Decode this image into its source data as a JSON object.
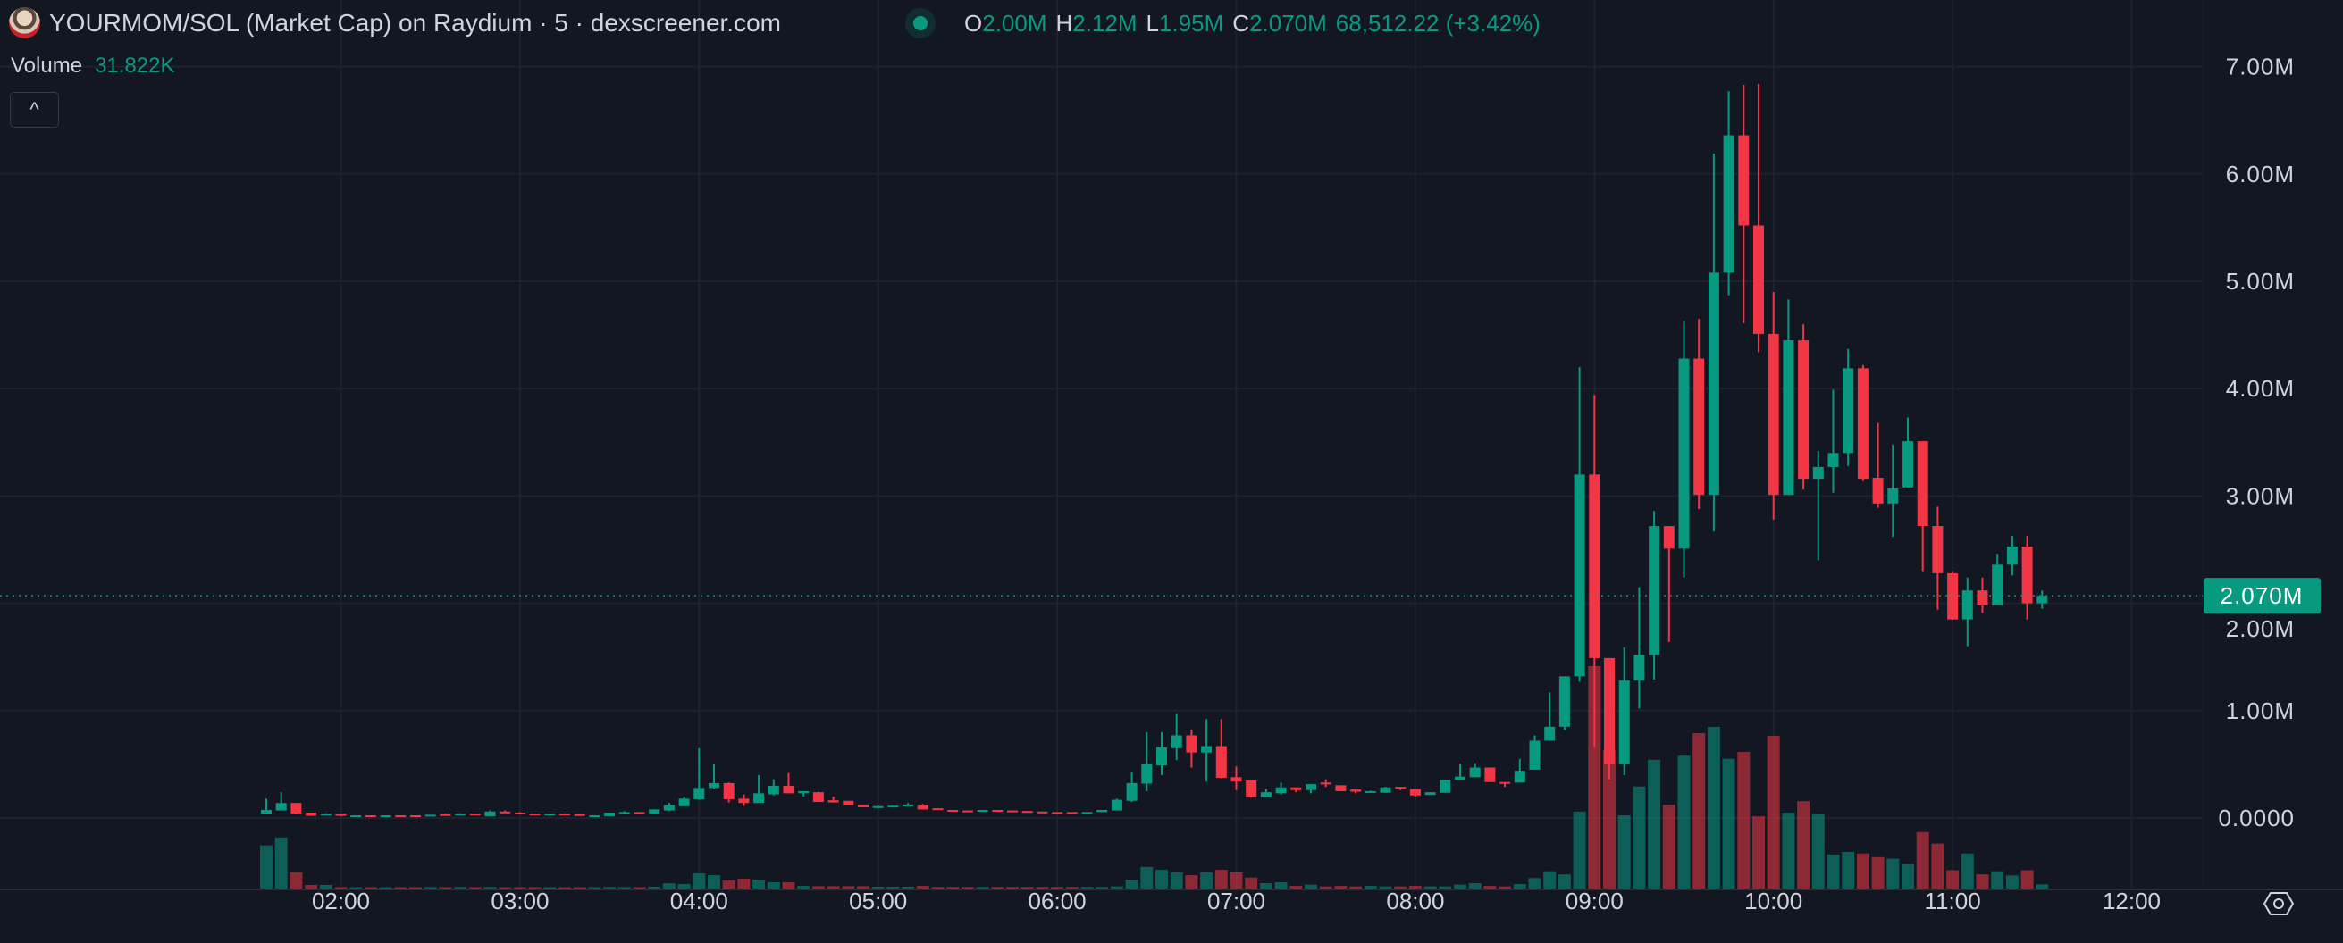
{
  "header": {
    "title": "YOURMOM/SOL (Market Cap) on Raydium · 5 · dexscreener.com",
    "status": "live",
    "open_label": "O",
    "open": "2.00M",
    "high_label": "H",
    "high": "2.12M",
    "low_label": "L",
    "low": "1.95M",
    "close_label": "C",
    "close": "2.070M",
    "change": "68,512.22 (+3.42%)"
  },
  "volume_legend": {
    "label": "Volume",
    "value": "31.822K"
  },
  "collapse_button": {
    "glyph": "^"
  },
  "settings_icon": "gear-icon",
  "colors": {
    "background": "#131722",
    "up": "#089981",
    "down": "#f23645",
    "grid": "#1e222d",
    "text": "#d1d4dc"
  },
  "chart_data": {
    "type": "candlestick",
    "interval": "5",
    "unit_price": "M",
    "unit_volume": "K",
    "y_ticks": [
      "0.0000",
      "1.00M",
      "2.00M",
      "3.00M",
      "4.00M",
      "5.00M",
      "6.00M",
      "7.00M"
    ],
    "y_tick_values": [
      0,
      1,
      2,
      3,
      4,
      5,
      6,
      7
    ],
    "ylim": [
      0,
      7.0
    ],
    "x_ticks": [
      "02:00",
      "03:00",
      "04:00",
      "05:00",
      "06:00",
      "07:00",
      "08:00",
      "09:00",
      "10:00",
      "11:00",
      "12:00"
    ],
    "first_candle_time": "01:35",
    "last_price": 2.07,
    "last_price_label": "2.070M",
    "grid": true,
    "ohlc": [
      [
        0.04,
        0.18,
        0.035,
        0.075
      ],
      [
        0.07,
        0.24,
        0.07,
        0.14
      ],
      [
        0.14,
        0.14,
        0.035,
        0.04
      ],
      [
        0.05,
        0.05,
        0.02,
        0.02
      ],
      [
        0.03,
        0.045,
        0.025,
        0.04
      ],
      [
        0.04,
        0.04,
        0.015,
        0.02
      ],
      [
        0.02,
        0.025,
        0.02,
        0.025
      ],
      [
        0.025,
        0.025,
        0.02,
        0.02
      ],
      [
        0.02,
        0.025,
        0.02,
        0.025
      ],
      [
        0.025,
        0.025,
        0.02,
        0.02
      ],
      [
        0.025,
        0.025,
        0.02,
        0.02
      ],
      [
        0.02,
        0.03,
        0.02,
        0.03
      ],
      [
        0.035,
        0.04,
        0.02,
        0.025
      ],
      [
        0.03,
        0.045,
        0.03,
        0.04
      ],
      [
        0.04,
        0.04,
        0.035,
        0.035
      ],
      [
        0.015,
        0.07,
        0.015,
        0.06
      ],
      [
        0.06,
        0.07,
        0.05,
        0.05
      ],
      [
        0.05,
        0.055,
        0.04,
        0.04
      ],
      [
        0.04,
        0.04,
        0.03,
        0.035
      ],
      [
        0.035,
        0.04,
        0.035,
        0.04
      ],
      [
        0.04,
        0.04,
        0.035,
        0.035
      ],
      [
        0.035,
        0.035,
        0.025,
        0.025
      ],
      [
        0.02,
        0.025,
        0.02,
        0.025
      ],
      [
        0.015,
        0.05,
        0.015,
        0.05
      ],
      [
        0.05,
        0.065,
        0.05,
        0.055
      ],
      [
        0.055,
        0.055,
        0.05,
        0.05
      ],
      [
        0.04,
        0.08,
        0.04,
        0.08
      ],
      [
        0.07,
        0.14,
        0.065,
        0.12
      ],
      [
        0.11,
        0.2,
        0.11,
        0.18
      ],
      [
        0.175,
        0.65,
        0.17,
        0.28
      ],
      [
        0.28,
        0.5,
        0.27,
        0.325
      ],
      [
        0.325,
        0.33,
        0.145,
        0.175
      ],
      [
        0.18,
        0.22,
        0.11,
        0.14
      ],
      [
        0.14,
        0.4,
        0.14,
        0.23
      ],
      [
        0.22,
        0.36,
        0.21,
        0.3
      ],
      [
        0.3,
        0.42,
        0.23,
        0.23
      ],
      [
        0.23,
        0.25,
        0.2,
        0.25
      ],
      [
        0.24,
        0.245,
        0.15,
        0.15
      ],
      [
        0.165,
        0.2,
        0.145,
        0.145
      ],
      [
        0.16,
        0.16,
        0.12,
        0.12
      ],
      [
        0.125,
        0.125,
        0.1,
        0.1
      ],
      [
        0.1,
        0.115,
        0.09,
        0.11
      ],
      [
        0.11,
        0.115,
        0.11,
        0.115
      ],
      [
        0.11,
        0.14,
        0.11,
        0.125
      ],
      [
        0.12,
        0.13,
        0.08,
        0.08
      ],
      [
        0.09,
        0.09,
        0.08,
        0.08
      ],
      [
        0.075,
        0.075,
        0.06,
        0.065
      ],
      [
        0.07,
        0.07,
        0.065,
        0.065
      ],
      [
        0.07,
        0.075,
        0.07,
        0.075
      ],
      [
        0.075,
        0.075,
        0.07,
        0.07
      ],
      [
        0.07,
        0.07,
        0.065,
        0.065
      ],
      [
        0.065,
        0.065,
        0.05,
        0.055
      ],
      [
        0.06,
        0.06,
        0.055,
        0.055
      ],
      [
        0.055,
        0.055,
        0.05,
        0.05
      ],
      [
        0.055,
        0.055,
        0.045,
        0.045
      ],
      [
        0.047,
        0.055,
        0.047,
        0.055
      ],
      [
        0.055,
        0.075,
        0.055,
        0.075
      ],
      [
        0.07,
        0.18,
        0.07,
        0.17
      ],
      [
        0.16,
        0.43,
        0.15,
        0.325
      ],
      [
        0.32,
        0.8,
        0.25,
        0.5
      ],
      [
        0.49,
        0.8,
        0.4,
        0.66
      ],
      [
        0.65,
        0.97,
        0.54,
        0.77
      ],
      [
        0.77,
        0.825,
        0.47,
        0.61
      ],
      [
        0.61,
        0.92,
        0.34,
        0.67
      ],
      [
        0.67,
        0.92,
        0.37,
        0.375
      ],
      [
        0.38,
        0.48,
        0.26,
        0.34
      ],
      [
        0.35,
        0.35,
        0.19,
        0.195
      ],
      [
        0.195,
        0.27,
        0.195,
        0.24
      ],
      [
        0.23,
        0.33,
        0.22,
        0.285
      ],
      [
        0.285,
        0.285,
        0.24,
        0.26
      ],
      [
        0.26,
        0.315,
        0.23,
        0.315
      ],
      [
        0.33,
        0.36,
        0.29,
        0.315
      ],
      [
        0.305,
        0.305,
        0.25,
        0.25
      ],
      [
        0.265,
        0.265,
        0.23,
        0.245
      ],
      [
        0.235,
        0.255,
        0.235,
        0.25
      ],
      [
        0.235,
        0.29,
        0.235,
        0.285
      ],
      [
        0.29,
        0.29,
        0.26,
        0.275
      ],
      [
        0.27,
        0.27,
        0.2,
        0.21
      ],
      [
        0.215,
        0.24,
        0.215,
        0.24
      ],
      [
        0.235,
        0.355,
        0.235,
        0.355
      ],
      [
        0.355,
        0.505,
        0.355,
        0.385
      ],
      [
        0.38,
        0.51,
        0.38,
        0.47
      ],
      [
        0.47,
        0.47,
        0.335,
        0.335
      ],
      [
        0.335,
        0.335,
        0.29,
        0.32
      ],
      [
        0.33,
        0.55,
        0.33,
        0.44
      ],
      [
        0.45,
        0.77,
        0.45,
        0.72
      ],
      [
        0.72,
        1.17,
        0.72,
        0.85
      ],
      [
        0.85,
        1.32,
        0.82,
        1.32
      ],
      [
        1.32,
        4.2,
        1.27,
        3.2
      ],
      [
        3.2,
        3.94,
        0.66,
        1.49
      ],
      [
        1.49,
        1.49,
        0.36,
        0.5
      ],
      [
        0.5,
        1.59,
        0.4,
        1.28
      ],
      [
        1.28,
        2.15,
        1.02,
        1.52
      ],
      [
        1.52,
        2.86,
        1.29,
        2.72
      ],
      [
        2.72,
        2.72,
        1.64,
        2.51
      ],
      [
        2.51,
        4.63,
        2.24,
        4.28
      ],
      [
        4.28,
        4.65,
        2.88,
        3.01
      ],
      [
        3.01,
        6.19,
        2.67,
        5.08
      ],
      [
        5.08,
        6.77,
        4.87,
        6.36
      ],
      [
        6.36,
        6.83,
        4.61,
        5.52
      ],
      [
        5.52,
        6.84,
        4.34,
        4.51
      ],
      [
        4.51,
        4.9,
        2.78,
        3.01
      ],
      [
        3.01,
        4.83,
        3.01,
        4.45
      ],
      [
        4.45,
        4.6,
        3.06,
        3.16
      ],
      [
        3.16,
        3.42,
        2.4,
        3.27
      ],
      [
        3.27,
        3.99,
        3.03,
        3.4
      ],
      [
        3.4,
        4.37,
        3.28,
        4.19
      ],
      [
        4.19,
        4.22,
        3.14,
        3.16
      ],
      [
        3.17,
        3.68,
        2.89,
        2.93
      ],
      [
        2.93,
        3.48,
        2.62,
        3.07
      ],
      [
        3.08,
        3.73,
        3.08,
        3.51
      ],
      [
        3.51,
        3.51,
        2.3,
        2.72
      ],
      [
        2.72,
        2.9,
        1.94,
        2.28
      ],
      [
        2.28,
        2.3,
        1.85,
        1.85
      ],
      [
        1.85,
        2.24,
        1.6,
        2.12
      ],
      [
        2.12,
        2.24,
        1.91,
        1.98
      ],
      [
        1.98,
        2.46,
        1.98,
        2.36
      ],
      [
        2.36,
        2.63,
        2.26,
        2.53
      ],
      [
        2.53,
        2.63,
        1.85,
        2.0
      ],
      [
        2.0,
        2.12,
        1.95,
        2.07
      ]
    ],
    "volume": [
      330,
      390,
      125,
      28,
      28,
      10,
      9,
      10,
      8,
      10,
      9,
      11,
      10,
      12,
      9,
      12,
      10,
      9,
      10,
      9,
      10,
      9,
      9,
      12,
      11,
      10,
      14,
      40,
      34,
      116,
      102,
      61,
      75,
      68,
      48,
      48,
      20,
      18,
      18,
      18,
      18,
      14,
      14,
      14,
      20,
      12,
      12,
      12,
      12,
      12,
      12,
      12,
      12,
      12,
      12,
      12,
      12,
      16,
      68,
      165,
      143,
      123,
      102,
      123,
      143,
      123,
      84,
      41,
      48,
      20,
      30,
      16,
      20,
      16,
      20,
      16,
      16,
      20,
      16,
      16,
      30,
      41,
      20,
      16,
      34,
      80,
      132,
      108,
      588,
      1700,
      1060,
      560,
      780,
      984,
      640,
      1016,
      1188,
      1236,
      992,
      1044,
      552,
      1168,
      580,
      668,
      568,
      260,
      280,
      268,
      240,
      228,
      188,
      432,
      344,
      140,
      268,
      108,
      132,
      100,
      140,
      31.822
    ]
  }
}
